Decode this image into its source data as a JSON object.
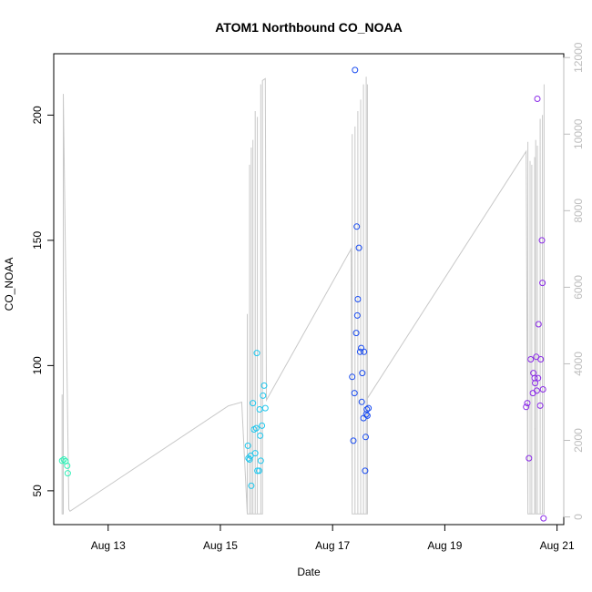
{
  "chart_data": {
    "type": "scatter",
    "title": "ATOM1 Northbound CO_NOAA",
    "xlabel": "Date",
    "ylabel": "CO_NOAA",
    "xlim": [
      12.03,
      21.12
    ],
    "ylim": [
      36.5,
      224.5
    ],
    "y2lim": [
      -200,
      12100
    ],
    "x_ticks": [
      {
        "value": 13,
        "label": "Aug 13"
      },
      {
        "value": 15,
        "label": "Aug 15"
      },
      {
        "value": 17,
        "label": "Aug 17"
      },
      {
        "value": 19,
        "label": "Aug 19"
      },
      {
        "value": 21,
        "label": "Aug 21"
      }
    ],
    "y_ticks": [
      50,
      100,
      150,
      200
    ],
    "y2_ticks": [
      0,
      2000,
      4000,
      6000,
      8000,
      10000,
      12000
    ],
    "series": [
      {
        "name": "CO_NOAA",
        "points": [
          {
            "x": 12.18,
            "y": 62,
            "color": "#33f0b8"
          },
          {
            "x": 12.21,
            "y": 62.5,
            "color": "#33f0b8"
          },
          {
            "x": 12.24,
            "y": 61.8,
            "color": "#33f0b8"
          },
          {
            "x": 12.27,
            "y": 60,
            "color": "#33f0b8"
          },
          {
            "x": 12.28,
            "y": 57,
            "color": "#33f0b8"
          },
          {
            "x": 15.49,
            "y": 68,
            "color": "#1fc7ee"
          },
          {
            "x": 15.5,
            "y": 63,
            "color": "#1fc7ee"
          },
          {
            "x": 15.52,
            "y": 62.5,
            "color": "#1fc7ee"
          },
          {
            "x": 15.54,
            "y": 64,
            "color": "#1fc7ee"
          },
          {
            "x": 15.55,
            "y": 52,
            "color": "#1fc7ee"
          },
          {
            "x": 15.58,
            "y": 85,
            "color": "#1fc7ee"
          },
          {
            "x": 15.6,
            "y": 74.5,
            "color": "#1fc7ee"
          },
          {
            "x": 15.62,
            "y": 65,
            "color": "#1fc7ee"
          },
          {
            "x": 15.64,
            "y": 75,
            "color": "#1fc7ee"
          },
          {
            "x": 15.65,
            "y": 105,
            "color": "#1fc7ee"
          },
          {
            "x": 15.66,
            "y": 58,
            "color": "#1fc7ee"
          },
          {
            "x": 15.69,
            "y": 58,
            "color": "#1fc7ee"
          },
          {
            "x": 15.7,
            "y": 82.5,
            "color": "#1fc7ee"
          },
          {
            "x": 15.71,
            "y": 72,
            "color": "#1fc7ee"
          },
          {
            "x": 15.72,
            "y": 62,
            "color": "#1fc7ee"
          },
          {
            "x": 15.74,
            "y": 76,
            "color": "#1fc7ee"
          },
          {
            "x": 15.76,
            "y": 88,
            "color": "#1fc7ee"
          },
          {
            "x": 15.78,
            "y": 92,
            "color": "#1fc7ee"
          },
          {
            "x": 15.8,
            "y": 83,
            "color": "#1fc7ee"
          },
          {
            "x": 17.35,
            "y": 95.5,
            "color": "#1a4cf0"
          },
          {
            "x": 17.37,
            "y": 70,
            "color": "#1a4cf0"
          },
          {
            "x": 17.39,
            "y": 89,
            "color": "#1a4cf0"
          },
          {
            "x": 17.4,
            "y": 218,
            "color": "#1a4cf0"
          },
          {
            "x": 17.42,
            "y": 113,
            "color": "#1a4cf0"
          },
          {
            "x": 17.43,
            "y": 155.5,
            "color": "#1a4cf0"
          },
          {
            "x": 17.44,
            "y": 120,
            "color": "#1a4cf0"
          },
          {
            "x": 17.45,
            "y": 126.5,
            "color": "#1a4cf0"
          },
          {
            "x": 17.47,
            "y": 147,
            "color": "#1a4cf0"
          },
          {
            "x": 17.49,
            "y": 105.5,
            "color": "#1a4cf0"
          },
          {
            "x": 17.51,
            "y": 107,
            "color": "#1a4cf0"
          },
          {
            "x": 17.52,
            "y": 85.5,
            "color": "#1a4cf0"
          },
          {
            "x": 17.53,
            "y": 97,
            "color": "#1a4cf0"
          },
          {
            "x": 17.55,
            "y": 79,
            "color": "#1a4cf0"
          },
          {
            "x": 17.56,
            "y": 105.5,
            "color": "#1a4cf0"
          },
          {
            "x": 17.58,
            "y": 58,
            "color": "#1a4cf0"
          },
          {
            "x": 17.59,
            "y": 71.5,
            "color": "#1a4cf0"
          },
          {
            "x": 17.6,
            "y": 80.5,
            "color": "#1a4cf0"
          },
          {
            "x": 17.61,
            "y": 82.5,
            "color": "#1a4cf0"
          },
          {
            "x": 17.62,
            "y": 80,
            "color": "#1a4cf0"
          },
          {
            "x": 17.64,
            "y": 83,
            "color": "#1a4cf0"
          },
          {
            "x": 20.45,
            "y": 83.5,
            "color": "#8b2be8"
          },
          {
            "x": 20.47,
            "y": 85,
            "color": "#8b2be8"
          },
          {
            "x": 20.5,
            "y": 63,
            "color": "#8b2be8"
          },
          {
            "x": 20.53,
            "y": 102.5,
            "color": "#8b2be8"
          },
          {
            "x": 20.57,
            "y": 89,
            "color": "#8b2be8"
          },
          {
            "x": 20.58,
            "y": 97,
            "color": "#8b2be8"
          },
          {
            "x": 20.6,
            "y": 95,
            "color": "#8b2be8"
          },
          {
            "x": 20.61,
            "y": 93,
            "color": "#8b2be8"
          },
          {
            "x": 20.63,
            "y": 103.5,
            "color": "#8b2be8"
          },
          {
            "x": 20.64,
            "y": 90,
            "color": "#8b2be8"
          },
          {
            "x": 20.65,
            "y": 206.5,
            "color": "#8b2be8"
          },
          {
            "x": 20.66,
            "y": 95,
            "color": "#8b2be8"
          },
          {
            "x": 20.67,
            "y": 116.5,
            "color": "#8b2be8"
          },
          {
            "x": 20.7,
            "y": 84,
            "color": "#8b2be8"
          },
          {
            "x": 20.71,
            "y": 102.5,
            "color": "#8b2be8"
          },
          {
            "x": 20.73,
            "y": 150,
            "color": "#8b2be8"
          },
          {
            "x": 20.74,
            "y": 133,
            "color": "#8b2be8"
          },
          {
            "x": 20.75,
            "y": 90.5,
            "color": "#8b2be8"
          },
          {
            "x": 20.76,
            "y": 39,
            "color": "#8b2be8"
          }
        ]
      },
      {
        "name": "secondary_axis_trace",
        "axis": "right",
        "color": "#c8c8c8",
        "points": [
          [
            12.18,
            80
          ],
          [
            12.18,
            3200
          ],
          [
            12.18,
            80
          ],
          [
            12.2,
            80
          ],
          [
            12.2,
            11050
          ],
          [
            12.3,
            200
          ],
          [
            12.32,
            150
          ],
          [
            15.14,
            2900
          ],
          [
            15.38,
            3000
          ],
          [
            15.48,
            80
          ],
          [
            15.48,
            5300
          ],
          [
            15.48,
            80
          ],
          [
            15.52,
            80
          ],
          [
            15.52,
            9200
          ],
          [
            15.52,
            80
          ],
          [
            15.55,
            80
          ],
          [
            15.55,
            9650
          ],
          [
            15.55,
            80
          ],
          [
            15.58,
            80
          ],
          [
            15.58,
            9850
          ],
          [
            15.58,
            80
          ],
          [
            15.62,
            80
          ],
          [
            15.62,
            10600
          ],
          [
            15.62,
            80
          ],
          [
            15.66,
            80
          ],
          [
            15.66,
            10450
          ],
          [
            15.66,
            80
          ],
          [
            15.72,
            80
          ],
          [
            15.72,
            11300
          ],
          [
            15.72,
            80
          ],
          [
            15.75,
            80
          ],
          [
            15.75,
            11400
          ],
          [
            15.8,
            11450
          ],
          [
            15.82,
            3050
          ],
          [
            17.33,
            7000
          ],
          [
            17.35,
            80
          ],
          [
            17.35,
            10000
          ],
          [
            17.35,
            80
          ],
          [
            17.4,
            80
          ],
          [
            17.4,
            10200
          ],
          [
            17.4,
            80
          ],
          [
            17.45,
            80
          ],
          [
            17.45,
            10600
          ],
          [
            17.45,
            80
          ],
          [
            17.5,
            80
          ],
          [
            17.5,
            10900
          ],
          [
            17.5,
            80
          ],
          [
            17.55,
            80
          ],
          [
            17.55,
            11300
          ],
          [
            17.55,
            80
          ],
          [
            17.6,
            80
          ],
          [
            17.6,
            11500
          ],
          [
            17.6,
            80
          ],
          [
            17.62,
            80
          ],
          [
            17.62,
            11300
          ],
          [
            17.62,
            3100
          ],
          [
            20.45,
            9550
          ],
          [
            20.48,
            80
          ],
          [
            20.48,
            9800
          ],
          [
            20.48,
            80
          ],
          [
            20.52,
            80
          ],
          [
            20.52,
            9300
          ],
          [
            20.52,
            80
          ],
          [
            20.55,
            80
          ],
          [
            20.55,
            9200
          ],
          [
            20.55,
            80
          ],
          [
            20.6,
            80
          ],
          [
            20.6,
            9400
          ],
          [
            20.6,
            2300
          ],
          [
            20.62,
            2300
          ],
          [
            20.62,
            9850
          ],
          [
            20.62,
            80
          ],
          [
            20.65,
            80
          ],
          [
            20.65,
            9700
          ],
          [
            20.65,
            80
          ],
          [
            20.7,
            80
          ],
          [
            20.7,
            10400
          ],
          [
            20.7,
            80
          ],
          [
            20.74,
            80
          ],
          [
            20.74,
            10500
          ],
          [
            20.74,
            80
          ],
          [
            20.77,
            80
          ],
          [
            20.77,
            11300
          ]
        ]
      }
    ]
  }
}
